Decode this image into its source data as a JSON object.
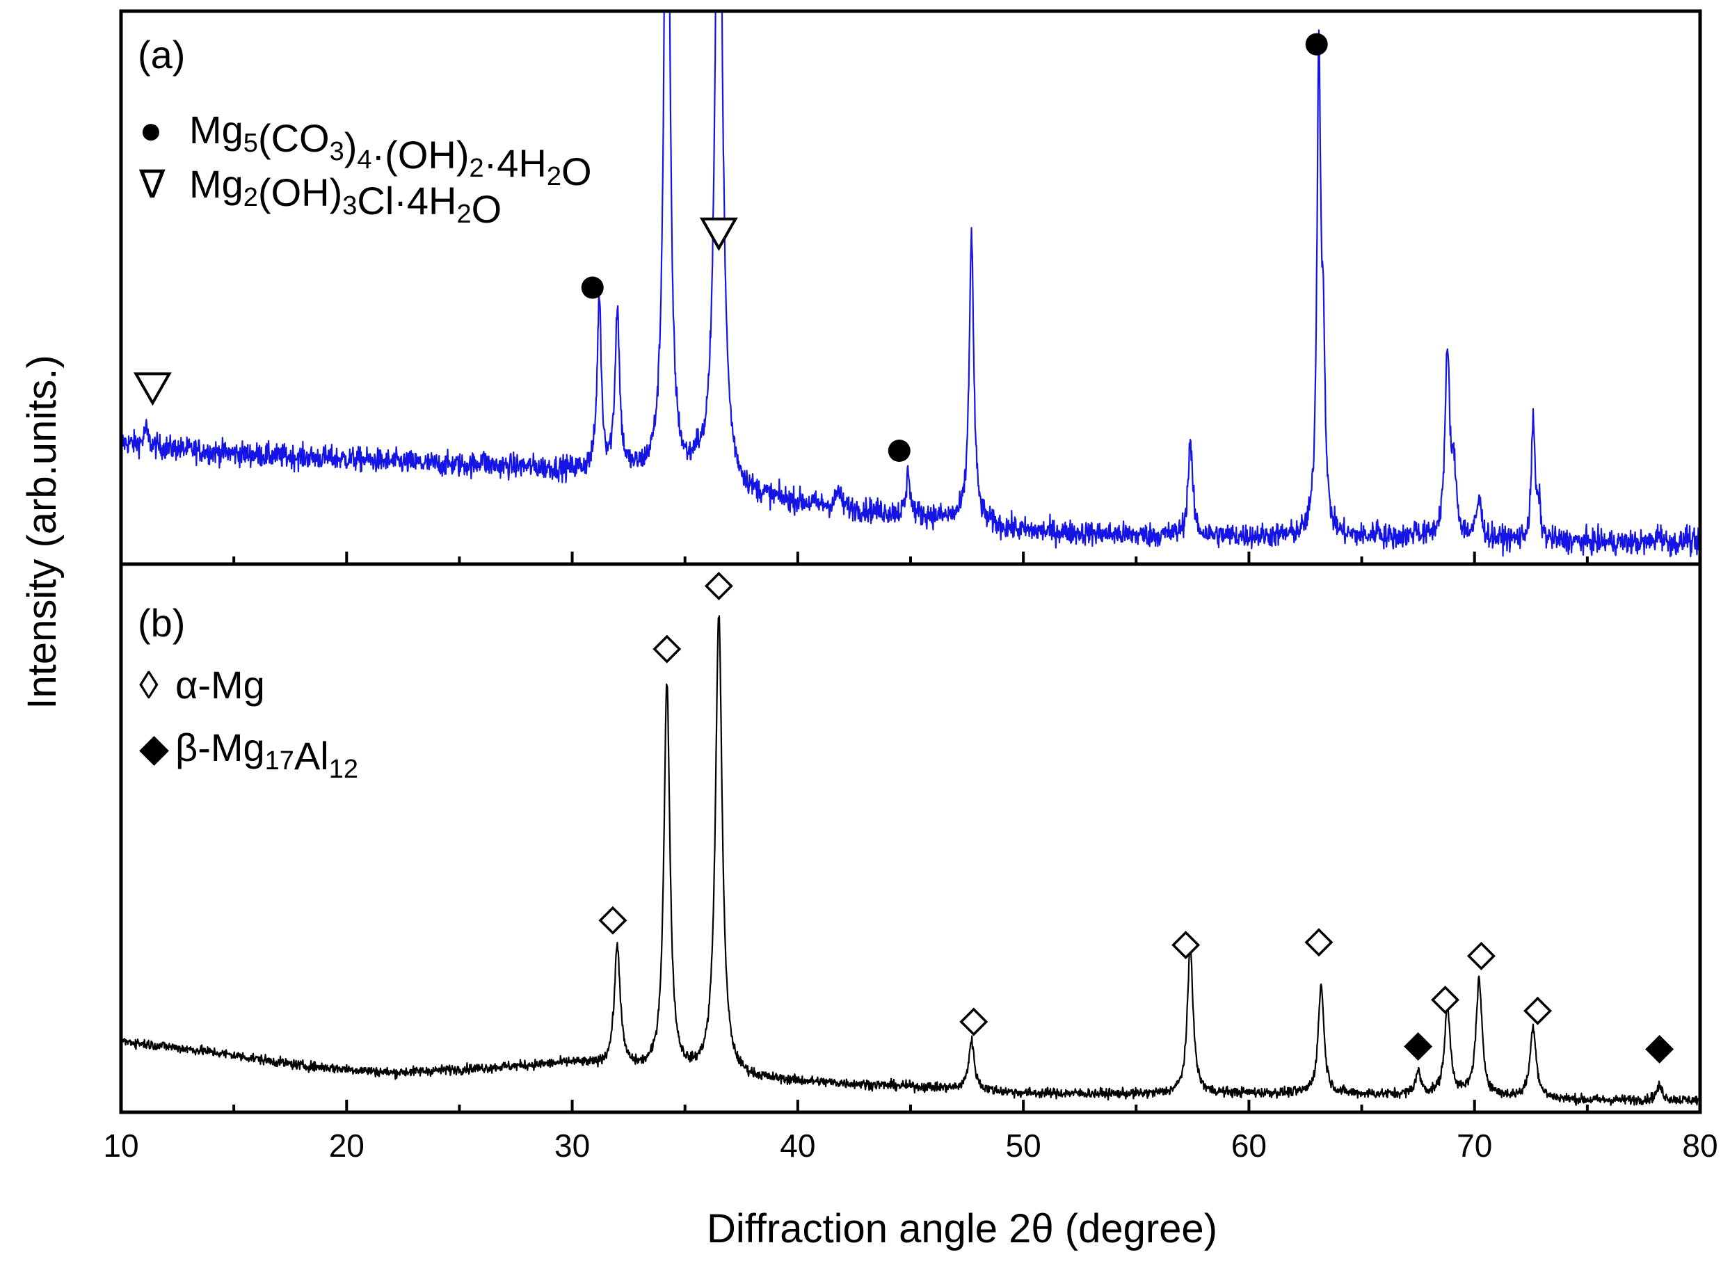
{
  "chart_data": {
    "type": "line",
    "title": "",
    "xlabel": "Diffraction angle 2θ (degree)",
    "ylabel": "Intensity (arb.units.)",
    "xlim": [
      10,
      80
    ],
    "x_ticks": [
      10,
      20,
      30,
      40,
      50,
      60,
      70,
      80
    ],
    "x_minor_step": 5,
    "ylim": [
      0,
      100
    ],
    "panels": [
      {
        "id": "a",
        "label": "(a)",
        "color": "#1414e6",
        "noise": 1.1,
        "baseline": [
          [
            10,
            22
          ],
          [
            12,
            21
          ],
          [
            15,
            20
          ],
          [
            17,
            19.5
          ],
          [
            20,
            19
          ],
          [
            24,
            18
          ],
          [
            28,
            17.5
          ],
          [
            33,
            16
          ],
          [
            38,
            12
          ],
          [
            42,
            10
          ],
          [
            46,
            8.5
          ],
          [
            50,
            6
          ],
          [
            55,
            5.2
          ],
          [
            60,
            5
          ],
          [
            65,
            4.8
          ],
          [
            70,
            4.5
          ],
          [
            75,
            4
          ],
          [
            80,
            3.6
          ]
        ],
        "peaks": [
          {
            "x": 11.1,
            "h": 3,
            "w": 0.1
          },
          {
            "x": 26.0,
            "h": 1.5,
            "w": 0.1
          },
          {
            "x": 31.2,
            "h": 31,
            "w": 0.11
          },
          {
            "x": 32.0,
            "h": 29,
            "w": 0.12
          },
          {
            "x": 34.2,
            "h": 150,
            "w": 0.14
          },
          {
            "x": 35.5,
            "h": 2.5,
            "w": 0.15
          },
          {
            "x": 36.5,
            "h": 140,
            "w": 0.18
          },
          {
            "x": 41.8,
            "h": 3,
            "w": 0.12
          },
          {
            "x": 44.9,
            "h": 8,
            "w": 0.09
          },
          {
            "x": 47.7,
            "h": 52,
            "w": 0.12
          },
          {
            "x": 57.4,
            "h": 17,
            "w": 0.12
          },
          {
            "x": 63.1,
            "h": 87,
            "w": 0.1
          },
          {
            "x": 63.3,
            "h": 30,
            "w": 0.09
          },
          {
            "x": 65.7,
            "h": 1.5,
            "w": 0.1
          },
          {
            "x": 67.4,
            "h": 1.5,
            "w": 0.12
          },
          {
            "x": 68.8,
            "h": 33,
            "w": 0.13
          },
          {
            "x": 69.1,
            "h": 10,
            "w": 0.12
          },
          {
            "x": 70.2,
            "h": 7,
            "w": 0.13
          },
          {
            "x": 72.6,
            "h": 22,
            "w": 0.09
          },
          {
            "x": 72.85,
            "h": 6,
            "w": 0.09
          },
          {
            "x": 78.2,
            "h": 2,
            "w": 0.13
          },
          {
            "x": 79.4,
            "h": 2,
            "w": 0.06
          }
        ],
        "markers": [
          {
            "x": 11.4,
            "y": 32,
            "symbol": "triangle-down-open"
          },
          {
            "x": 30.9,
            "y": 50,
            "symbol": "circle-filled"
          },
          {
            "x": 36.5,
            "y": 60,
            "symbol": "triangle-down-open"
          },
          {
            "x": 44.5,
            "y": 20.5,
            "symbol": "circle-filled"
          },
          {
            "x": 63.0,
            "y": 94,
            "symbol": "circle-filled"
          }
        ],
        "legend": [
          {
            "symbol": "●",
            "parts": [
              [
                "Mg",
                ""
              ],
              [
                "5",
                "sub"
              ],
              [
                "(CO",
                ""
              ],
              [
                "3",
                "sub"
              ],
              [
                ")",
                ""
              ],
              [
                "4",
                "sub"
              ],
              [
                "·(OH)",
                ""
              ],
              [
                "2",
                "sub"
              ],
              [
                "·4H",
                ""
              ],
              [
                "2",
                "sub"
              ],
              [
                "O",
                ""
              ]
            ]
          },
          {
            "symbol": "∇",
            "parts": [
              [
                "Mg",
                ""
              ],
              [
                "2",
                "sub"
              ],
              [
                "(OH)",
                ""
              ],
              [
                "3",
                "sub"
              ],
              [
                "Cl·4H",
                ""
              ],
              [
                "2",
                "sub"
              ],
              [
                "O",
                ""
              ]
            ]
          }
        ]
      },
      {
        "id": "b",
        "label": "(b)",
        "color": "#000000",
        "noise": 0.45,
        "baseline": [
          [
            10,
            13
          ],
          [
            14,
            11
          ],
          [
            18,
            8.5
          ],
          [
            22,
            7.2
          ],
          [
            26,
            8
          ],
          [
            30,
            9
          ],
          [
            34,
            7
          ],
          [
            38,
            6
          ],
          [
            42,
            5.2
          ],
          [
            46,
            4.5
          ],
          [
            50,
            3.5
          ],
          [
            55,
            3.3
          ],
          [
            60,
            3.5
          ],
          [
            65,
            3.3
          ],
          [
            70,
            3
          ],
          [
            75,
            2.2
          ],
          [
            80,
            2.2
          ]
        ],
        "peaks": [
          {
            "x": 32.0,
            "h": 22,
            "w": 0.16
          },
          {
            "x": 34.2,
            "h": 71,
            "w": 0.16
          },
          {
            "x": 36.5,
            "h": 84,
            "w": 0.18
          },
          {
            "x": 47.7,
            "h": 9,
            "w": 0.15
          },
          {
            "x": 57.4,
            "h": 27,
            "w": 0.15
          },
          {
            "x": 63.2,
            "h": 20,
            "w": 0.15
          },
          {
            "x": 67.5,
            "h": 4,
            "w": 0.15
          },
          {
            "x": 68.8,
            "h": 15.5,
            "w": 0.16
          },
          {
            "x": 70.2,
            "h": 21,
            "w": 0.16
          },
          {
            "x": 72.6,
            "h": 13,
            "w": 0.16
          },
          {
            "x": 78.2,
            "h": 2.5,
            "w": 0.16
          }
        ],
        "markers": [
          {
            "x": 31.8,
            "y": 35,
            "symbol": "diamond-open"
          },
          {
            "x": 34.2,
            "y": 84.5,
            "symbol": "diamond-open"
          },
          {
            "x": 36.5,
            "y": 96,
            "symbol": "diamond-open"
          },
          {
            "x": 47.8,
            "y": 16.5,
            "symbol": "diamond-open"
          },
          {
            "x": 57.2,
            "y": 30.5,
            "symbol": "diamond-open"
          },
          {
            "x": 63.1,
            "y": 31,
            "symbol": "diamond-open"
          },
          {
            "x": 67.5,
            "y": 12,
            "symbol": "diamond-filled"
          },
          {
            "x": 68.7,
            "y": 20.5,
            "symbol": "diamond-open"
          },
          {
            "x": 70.3,
            "y": 28.5,
            "symbol": "diamond-open"
          },
          {
            "x": 72.8,
            "y": 18.5,
            "symbol": "diamond-open"
          },
          {
            "x": 78.2,
            "y": 11.5,
            "symbol": "diamond-filled"
          }
        ],
        "legend": [
          {
            "symbol": "◊",
            "parts": [
              [
                "α-Mg",
                ""
              ]
            ]
          },
          {
            "symbol": "◆",
            "parts": [
              [
                "β-Mg",
                ""
              ],
              [
                "17",
                "sub"
              ],
              [
                "Al",
                ""
              ],
              [
                "12",
                "sub"
              ]
            ]
          }
        ]
      }
    ]
  }
}
